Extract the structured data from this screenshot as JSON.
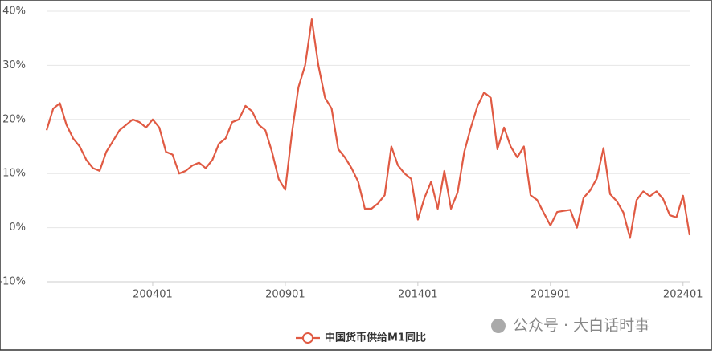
{
  "chart_data": {
    "type": "line",
    "categories": [
      null,
      null,
      null,
      null,
      null,
      null,
      null,
      null,
      null,
      null,
      null,
      null,
      null,
      null,
      null,
      null,
      "200401",
      null,
      null,
      null,
      null,
      null,
      null,
      null,
      null,
      null,
      null,
      null,
      null,
      null,
      null,
      null,
      null,
      null,
      null,
      null,
      "200901",
      null,
      null,
      null,
      null,
      null,
      null,
      null,
      null,
      null,
      null,
      null,
      null,
      null,
      null,
      null,
      null,
      null,
      null,
      null,
      "201401",
      null,
      null,
      null,
      null,
      null,
      null,
      null,
      null,
      null,
      null,
      null,
      null,
      null,
      null,
      null,
      null,
      null,
      null,
      null,
      "201901",
      null,
      null,
      null,
      null,
      null,
      null,
      null,
      null,
      null,
      null,
      null,
      null,
      null,
      null,
      null,
      null,
      null,
      null,
      null,
      "202401",
      null
    ],
    "series": [
      {
        "name": "中国货币供给M1同比",
        "color": "#e05a43",
        "values": [
          18,
          22,
          23,
          19,
          16.5,
          15,
          12.5,
          11,
          10.5,
          14,
          16,
          18,
          19,
          20,
          19.5,
          18.5,
          20,
          18.5,
          14,
          13.5,
          10,
          10.5,
          11.5,
          12,
          11,
          12.5,
          15.5,
          16.5,
          19.5,
          20,
          22.5,
          21.5,
          19,
          18,
          14,
          9,
          7,
          17.5,
          26,
          30,
          38.5,
          30,
          24,
          22,
          14.5,
          13,
          11,
          8.5,
          3.5,
          3.5,
          4.5,
          6,
          15,
          11.5,
          10,
          9,
          1.5,
          5.5,
          8.5,
          3.5,
          10.5,
          3.5,
          6.5,
          14,
          18.5,
          22.5,
          25,
          24,
          14.5,
          18.5,
          15,
          13,
          15,
          6,
          5.1,
          2.7,
          0.4,
          2.9,
          3.1,
          3.3,
          0,
          5.5,
          6.9,
          9.1,
          14.7,
          6.2,
          4.9,
          2.8,
          -1.9,
          5.1,
          6.7,
          5.8,
          6.7,
          5.3,
          2.3,
          1.9,
          5.9,
          -1.4
        ]
      }
    ],
    "ylim": [
      -10,
      40
    ],
    "yticks": [
      {
        "value": -10,
        "label": "-10%"
      },
      {
        "value": 0,
        "label": "0%"
      },
      {
        "value": 10,
        "label": "10%"
      },
      {
        "value": 20,
        "label": "20%"
      },
      {
        "value": 30,
        "label": "30%"
      },
      {
        "value": 40,
        "label": "40%"
      }
    ],
    "grid": true
  },
  "watermark": "公众号 · 大白话时事"
}
